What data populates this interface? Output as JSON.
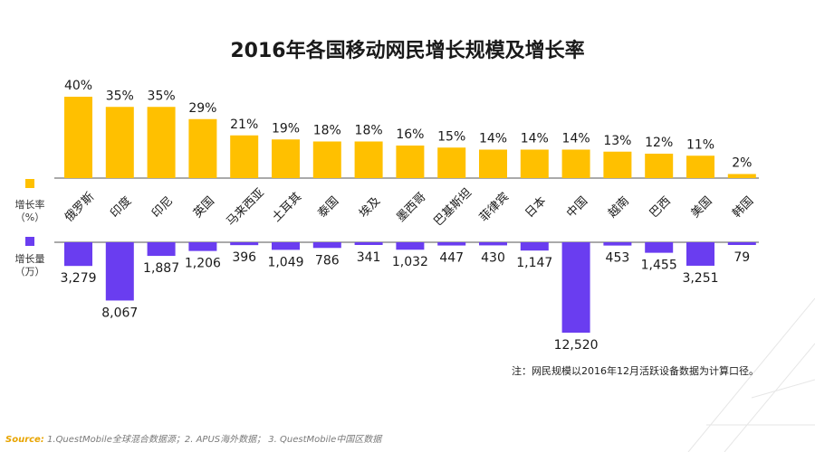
{
  "chart_data": {
    "type": "bar",
    "title": "2016年各国移动网民增长规模及增长率",
    "categories": [
      "俄罗斯",
      "印度",
      "印尼",
      "英国",
      "马来西亚",
      "土耳其",
      "泰国",
      "埃及",
      "墨西哥",
      "巴基斯坦",
      "菲律宾",
      "日本",
      "中国",
      "越南",
      "巴西",
      "美国",
      "韩国"
    ],
    "series": [
      {
        "name": "增长率（%）",
        "color": "#FFC000",
        "direction": "up",
        "values": [
          40,
          35,
          35,
          29,
          21,
          19,
          18,
          18,
          16,
          15,
          14,
          14,
          14,
          13,
          12,
          11,
          2
        ],
        "labels": [
          "40%",
          "35%",
          "35%",
          "29%",
          "21%",
          "19%",
          "18%",
          "18%",
          "16%",
          "15%",
          "14%",
          "14%",
          "14%",
          "13%",
          "12%",
          "11%",
          "2%"
        ]
      },
      {
        "name": "增长量（万）",
        "color": "#6A3DF0",
        "direction": "down",
        "values": [
          3279,
          8067,
          1887,
          1206,
          396,
          1049,
          786,
          341,
          1032,
          447,
          430,
          1147,
          12520,
          453,
          1455,
          3251,
          79
        ],
        "labels": [
          "3,279",
          "8,067",
          "1,887",
          "1,206",
          "396",
          "1,049",
          "786",
          "341",
          "1,032",
          "447",
          "430",
          "1,147",
          "12,520",
          "453",
          "1,455",
          "3,251",
          "79"
        ]
      }
    ],
    "legend": {
      "rate": {
        "line1": "增长率",
        "line2": "（%）"
      },
      "volume": {
        "line1": "增长量",
        "line2": "（万）"
      }
    },
    "footnote": "注：网民规模以2016年12月活跃设备数据为计算口径。",
    "source_label": "Source:",
    "source_text": " 1.QuestMobile全球混合数据源；2. APUS海外数据； 3. QuestMobile中国区数据"
  }
}
